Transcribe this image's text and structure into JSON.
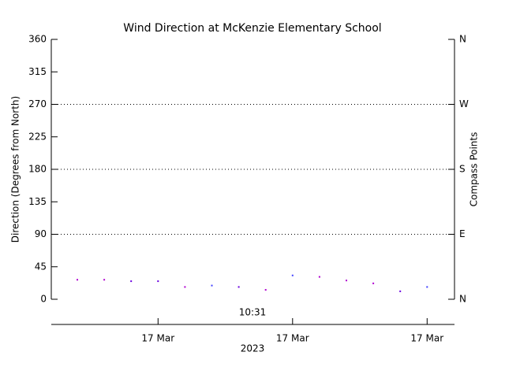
{
  "chart_data": {
    "type": "scatter",
    "title": "Wind Direction at McKenzie Elementary School",
    "ylabel": "Direction (Degrees from North)",
    "y2label": "Compass Points",
    "xlabel": "2023",
    "time_label": "10:31",
    "categories": [
      null,
      null,
      null,
      "17 Mar",
      null,
      null,
      null,
      null,
      "17 Mar",
      null,
      null,
      null,
      null,
      "17 Mar"
    ],
    "values": [
      27,
      27,
      25,
      25,
      17,
      19,
      17,
      13,
      33,
      31,
      26,
      22,
      11,
      17
    ],
    "point_colors": [
      "#b000d0",
      "#b000d0",
      "#6a00e0",
      "#6a00e0",
      "#b000d0",
      "#4040ff",
      "#6a00e0",
      "#b000d0",
      "#4040ff",
      "#b000d0",
      "#b000d0",
      "#b000d0",
      "#6a00e0",
      "#4040ff"
    ],
    "ylim": [
      0,
      360
    ],
    "yticks": [
      0,
      45,
      90,
      135,
      180,
      225,
      270,
      315,
      360
    ],
    "y2lim": [
      0,
      360
    ],
    "y2ticks": [
      {
        "value": 0,
        "label": "N"
      },
      {
        "value": 90,
        "label": "E"
      },
      {
        "value": 180,
        "label": "S"
      },
      {
        "value": 270,
        "label": "W"
      },
      {
        "value": 360,
        "label": "N"
      }
    ],
    "grid_values": [
      90,
      180,
      270
    ]
  }
}
